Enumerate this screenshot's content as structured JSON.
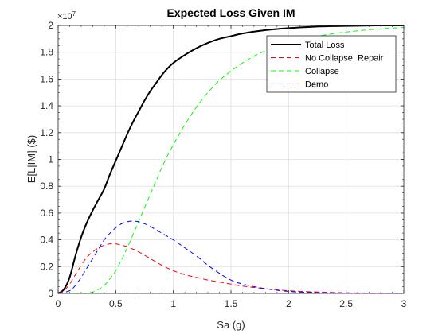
{
  "chart_data": {
    "type": "line",
    "title": "Expected Loss Given IM",
    "xlabel": "Sa (g)",
    "ylabel": "E[L|IM] ($)",
    "y_exponent_label": "×10",
    "y_exponent_power": "7",
    "xlim": [
      0,
      3
    ],
    "ylim": [
      0,
      2
    ],
    "x_ticks": [
      "0",
      "0.5",
      "1",
      "1.5",
      "2",
      "2.5",
      "3"
    ],
    "y_ticks": [
      "0",
      "0.2",
      "0.4",
      "0.6",
      "0.8",
      "1",
      "1.2",
      "1.4",
      "1.6",
      "1.8",
      "2"
    ],
    "grid": true,
    "legend_position": "top-right",
    "series": [
      {
        "name": "Total Loss",
        "color": "#000000",
        "dash": "solid",
        "x": [
          0,
          0.05,
          0.1,
          0.15,
          0.2,
          0.25,
          0.3,
          0.35,
          0.4,
          0.45,
          0.5,
          0.55,
          0.6,
          0.65,
          0.7,
          0.75,
          0.8,
          0.85,
          0.9,
          0.95,
          1.0,
          1.1,
          1.2,
          1.3,
          1.4,
          1.5,
          1.6,
          1.8,
          2.0,
          2.2,
          2.4,
          2.6,
          2.8,
          3.0
        ],
        "y": [
          0,
          0.03,
          0.12,
          0.28,
          0.42,
          0.53,
          0.62,
          0.7,
          0.78,
          0.89,
          0.99,
          1.09,
          1.19,
          1.28,
          1.36,
          1.44,
          1.51,
          1.57,
          1.63,
          1.68,
          1.72,
          1.78,
          1.83,
          1.87,
          1.9,
          1.92,
          1.94,
          1.965,
          1.98,
          1.99,
          1.995,
          1.998,
          2.0,
          2.0
        ]
      },
      {
        "name": "No Collapse, Repair",
        "color": "#ff0000",
        "dash": "dashed",
        "x": [
          0,
          0.05,
          0.1,
          0.15,
          0.2,
          0.25,
          0.3,
          0.35,
          0.4,
          0.45,
          0.5,
          0.55,
          0.6,
          0.65,
          0.7,
          0.8,
          0.9,
          1.0,
          1.1,
          1.2,
          1.3,
          1.4,
          1.5,
          1.6,
          1.8,
          2.0,
          2.2,
          2.5,
          2.8,
          3.0
        ],
        "y": [
          0,
          0.02,
          0.07,
          0.14,
          0.21,
          0.27,
          0.31,
          0.34,
          0.36,
          0.37,
          0.37,
          0.36,
          0.35,
          0.33,
          0.31,
          0.26,
          0.21,
          0.17,
          0.14,
          0.12,
          0.1,
          0.085,
          0.07,
          0.055,
          0.035,
          0.02,
          0.012,
          0.005,
          0.002,
          0.0
        ]
      },
      {
        "name": "Collapse",
        "color": "#00ff00",
        "dash": "dashed",
        "x": [
          0,
          0.1,
          0.2,
          0.25,
          0.3,
          0.35,
          0.4,
          0.45,
          0.5,
          0.55,
          0.6,
          0.65,
          0.7,
          0.75,
          0.8,
          0.85,
          0.9,
          0.95,
          1.0,
          1.1,
          1.2,
          1.3,
          1.4,
          1.5,
          1.6,
          1.7,
          1.8,
          2.0,
          2.2,
          2.4,
          2.6,
          2.8,
          3.0
        ],
        "y": [
          0,
          0,
          0,
          0.003,
          0.01,
          0.03,
          0.06,
          0.11,
          0.17,
          0.25,
          0.34,
          0.44,
          0.54,
          0.64,
          0.74,
          0.84,
          0.94,
          1.03,
          1.11,
          1.26,
          1.39,
          1.5,
          1.59,
          1.66,
          1.72,
          1.77,
          1.81,
          1.87,
          1.91,
          1.94,
          1.96,
          1.975,
          1.985
        ]
      },
      {
        "name": "Demo",
        "color": "#0000ff",
        "dash": "dashed",
        "x": [
          0,
          0.1,
          0.15,
          0.2,
          0.25,
          0.3,
          0.35,
          0.4,
          0.45,
          0.5,
          0.55,
          0.6,
          0.65,
          0.7,
          0.75,
          0.8,
          0.9,
          1.0,
          1.1,
          1.2,
          1.3,
          1.4,
          1.5,
          1.6,
          1.8,
          2.0,
          2.2,
          2.5,
          2.8,
          3.0
        ],
        "y": [
          0,
          0.02,
          0.06,
          0.12,
          0.19,
          0.26,
          0.33,
          0.4,
          0.45,
          0.49,
          0.52,
          0.535,
          0.54,
          0.535,
          0.52,
          0.5,
          0.45,
          0.4,
          0.34,
          0.28,
          0.21,
          0.15,
          0.1,
          0.07,
          0.035,
          0.015,
          0.007,
          0.002,
          0.001,
          0.0
        ]
      }
    ]
  }
}
